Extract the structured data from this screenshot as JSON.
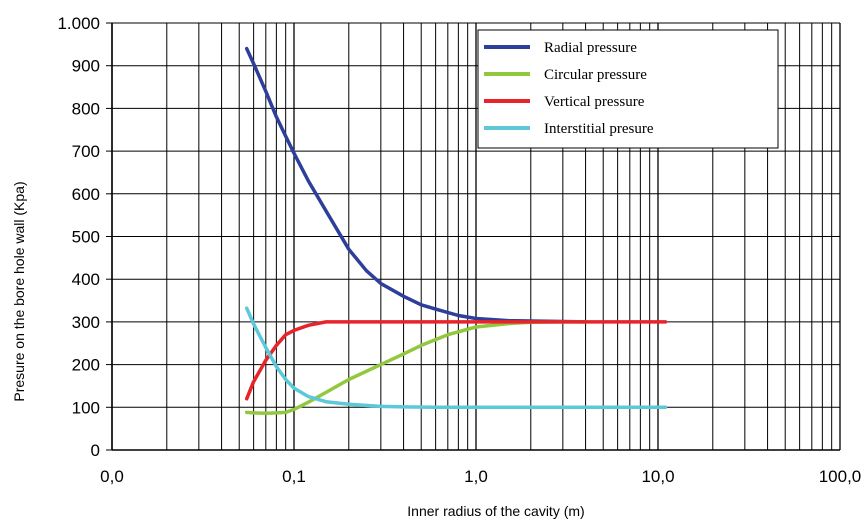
{
  "chart_data": {
    "type": "line",
    "title": "",
    "xlabel": "Inner radius of the cavity  (m)",
    "ylabel": "Presure on the  bore hole wall  (Kpa)",
    "x_scale": "log",
    "xlim": [
      0.01,
      100
    ],
    "ylim": [
      0,
      1000
    ],
    "x_tick_labels": [
      "0,0",
      "0,1",
      "1,0",
      "10,0",
      "100,0"
    ],
    "y_tick_values": [
      0,
      100,
      200,
      300,
      400,
      500,
      600,
      700,
      800,
      900,
      1000
    ],
    "y_tick_labels": [
      "0",
      "100",
      "200",
      "300",
      "400",
      "500",
      "600",
      "700",
      "800",
      "900",
      "1.000"
    ],
    "grid": true,
    "legend_position": "top-right",
    "series": [
      {
        "name": "Radial pressure",
        "color": "#2d3f9a",
        "x": [
          0.055,
          0.06,
          0.07,
          0.08,
          0.09,
          0.1,
          0.12,
          0.15,
          0.2,
          0.25,
          0.3,
          0.4,
          0.5,
          0.6,
          0.8,
          1.0,
          1.5,
          2.0,
          3.0,
          4.0
        ],
        "y": [
          940,
          905,
          840,
          780,
          735,
          695,
          630,
          560,
          470,
          420,
          390,
          360,
          340,
          330,
          315,
          308,
          303,
          302,
          301,
          300
        ]
      },
      {
        "name": "Circular pressure",
        "color": "#92c83e",
        "x": [
          0.055,
          0.06,
          0.07,
          0.08,
          0.09,
          0.1,
          0.12,
          0.15,
          0.2,
          0.3,
          0.4,
          0.5,
          0.7,
          1.0,
          1.5,
          2.0,
          3.0,
          4.0
        ],
        "y": [
          88,
          87,
          86,
          87,
          88,
          95,
          112,
          135,
          165,
          200,
          225,
          245,
          270,
          288,
          296,
          299,
          300,
          300
        ]
      },
      {
        "name": "Vertical pressure",
        "color": "#e8232a",
        "x": [
          0.055,
          0.06,
          0.07,
          0.08,
          0.09,
          0.1,
          0.12,
          0.15,
          0.17,
          0.2,
          0.5,
          1.0,
          2.0,
          5.0,
          11.0
        ],
        "y": [
          120,
          160,
          210,
          245,
          270,
          280,
          292,
          300,
          300,
          300,
          300,
          300,
          300,
          300,
          300
        ]
      },
      {
        "name": "Interstitial presure",
        "color": "#5cc8d8",
        "x": [
          0.055,
          0.06,
          0.07,
          0.08,
          0.09,
          0.1,
          0.12,
          0.15,
          0.2,
          0.3,
          0.4,
          0.6,
          1.0,
          2.0,
          5.0,
          11.0
        ],
        "y": [
          332,
          295,
          240,
          195,
          165,
          145,
          125,
          113,
          107,
          102,
          101,
          100,
          100,
          100,
          100,
          100
        ]
      }
    ]
  }
}
